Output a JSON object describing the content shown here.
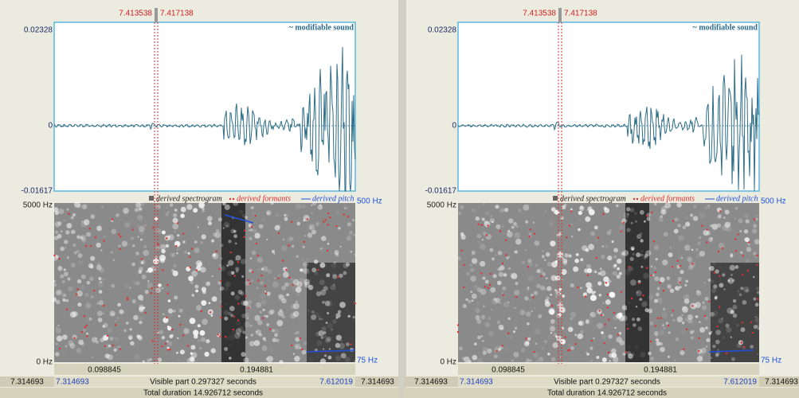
{
  "panels": [
    {
      "cursor_left": "7.413538",
      "cursor_right": "7.417138",
      "wave_max": "0.02328",
      "wave_zero": "0",
      "wave_min": "-0.01617",
      "sound_label": "~ modifiable sound",
      "legend": [
        "derived spectrogram",
        "derived formants",
        "derived pitch"
      ],
      "freq_top": "5000 Hz",
      "freq_bottom": "0 Hz",
      "pitch_top": "500 Hz",
      "pitch_bottom": "75 Hz",
      "segments": [
        "0.098845",
        "0.194881"
      ],
      "bottom": [
        "7.314693",
        "7.314693",
        "Visible part 0.297327 seconds",
        "7.612019",
        "7.314693"
      ],
      "total": "Total duration 14.926712 seconds"
    },
    {
      "cursor_left": "7.413538",
      "cursor_right": "7.417138",
      "wave_max": "0.02328",
      "wave_zero": "0",
      "wave_min": "-0.01617",
      "sound_label": "~ modifiable sound",
      "legend": [
        "derived spectrogram",
        "derived formants",
        "derived pitch"
      ],
      "freq_top": "5000 Hz",
      "freq_bottom": "0 Hz",
      "pitch_top": "500 Hz",
      "pitch_bottom": "75 Hz",
      "segments": [
        "0.098845",
        "0.194881"
      ],
      "bottom": [
        "7.314693",
        "7.314693",
        "Visible part 0.297327 seconds",
        "7.612019",
        "7.314693"
      ],
      "total": "Total duration 14.926712 seconds"
    }
  ]
}
